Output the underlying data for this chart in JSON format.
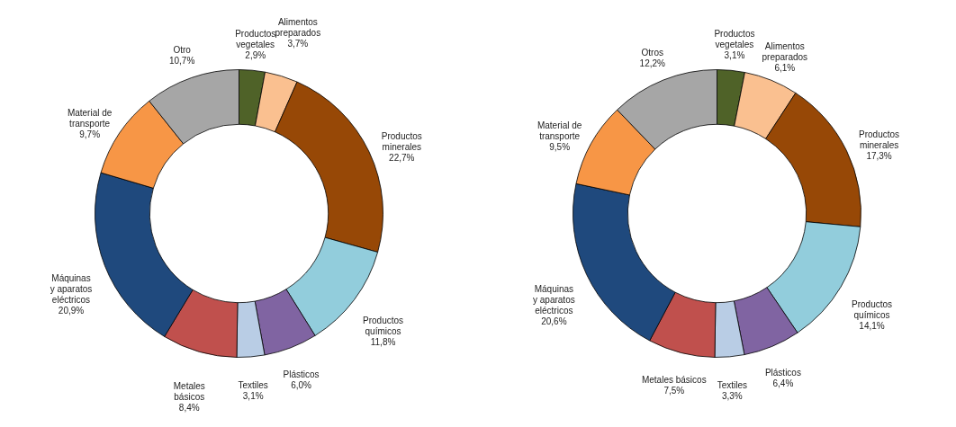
{
  "chart_data": [
    {
      "type": "donut",
      "categories": [
        "Productos\nvegetales",
        "Alimentos\npreparados",
        "Productos\nminerales",
        "Productos\nquímicos",
        "Plásticos",
        "Textiles",
        "Metales\nbásicos",
        "Máquinas\ny aparatos\neléctricos",
        "Material de\ntransporte",
        "Otro"
      ],
      "values": [
        2.9,
        3.7,
        22.7,
        11.8,
        6.0,
        3.1,
        8.4,
        20.9,
        9.7,
        10.7
      ],
      "value_labels": [
        "2,9%",
        "3,7%",
        "22,7%",
        "11,8%",
        "6,0%",
        "3,1%",
        "8,4%",
        "20,9%",
        "9,7%",
        "10,7%"
      ],
      "colors": [
        "#4f6228",
        "#fac090",
        "#974806",
        "#92cddc",
        "#8064a2",
        "#b9cde5",
        "#c0504d",
        "#1f497d",
        "#f79646",
        "#a6a6a6"
      ]
    },
    {
      "type": "donut",
      "categories": [
        "Productos\nvegetales",
        "Alimentos\npreparados",
        "Productos\nminerales",
        "Productos\nquímicos",
        "Plásticos",
        "Textiles",
        "Metales básicos",
        "Máquinas\ny aparatos\neléctricos",
        "Material de\ntransporte",
        "Otros"
      ],
      "values": [
        3.1,
        6.1,
        17.3,
        14.1,
        6.4,
        3.3,
        7.5,
        20.6,
        9.5,
        12.2
      ],
      "value_labels": [
        "3,1%",
        "6,1%",
        "17,3%",
        "14,1%",
        "6,4%",
        "3,3%",
        "7,5%",
        "20,6%",
        "9,5%",
        "12,2%"
      ],
      "colors": [
        "#4f6228",
        "#fac090",
        "#974806",
        "#92cddc",
        "#8064a2",
        "#b9cde5",
        "#c0504d",
        "#1f497d",
        "#f79646",
        "#a6a6a6"
      ]
    }
  ]
}
